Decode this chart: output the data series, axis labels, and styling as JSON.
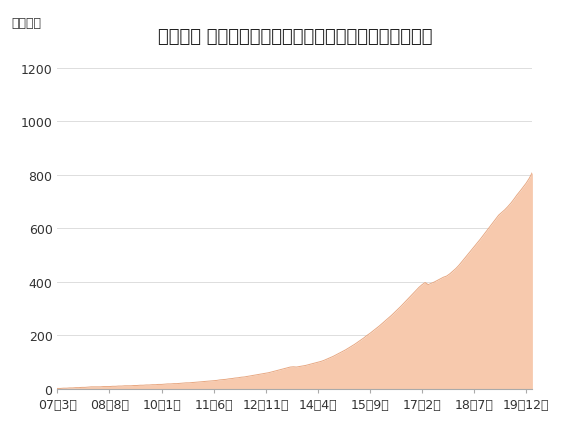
{
  "title": "「セゾン 資産形成の達人ファンド」の純資産残高の推移",
  "ylabel": "（億円）",
  "fill_color": "#F7C9AD",
  "line_color": "#E8A882",
  "background_color": "#ffffff",
  "ylim": [
    0,
    1260
  ],
  "yticks": [
    0,
    200,
    400,
    600,
    800,
    1000,
    1200
  ],
  "xtick_labels": [
    "07年3月",
    "08年8月",
    "10年1月",
    "11年6月",
    "12年11月",
    "14年4月",
    "15年9月",
    "17年2月",
    "18年7月",
    "19年12月"
  ],
  "title_fontsize": 13,
  "axis_fontsize": 9,
  "tick_fontsize": 9,
  "data_x": [
    0,
    1,
    2,
    3,
    4,
    5,
    6,
    7,
    8,
    9,
    10,
    11,
    12,
    13,
    14,
    15,
    16,
    17,
    18,
    19,
    20,
    21,
    22,
    23,
    24,
    25,
    26,
    27,
    28,
    29,
    30,
    31,
    32,
    33,
    34,
    35,
    36,
    37,
    38,
    39,
    40,
    41,
    42,
    43,
    44,
    45,
    46,
    47,
    48,
    49,
    50,
    51,
    52,
    53,
    54,
    55,
    56,
    57,
    58,
    59,
    60,
    61,
    62,
    63,
    64,
    65,
    66,
    67,
    68,
    69,
    70,
    71,
    72,
    73,
    74,
    75,
    76,
    77,
    78,
    79,
    80,
    81,
    82,
    83,
    84,
    85,
    86,
    87,
    88,
    89,
    90,
    91,
    92,
    93,
    94,
    95,
    96,
    97,
    98,
    99,
    100,
    101,
    102,
    103,
    104,
    105,
    106,
    107,
    108,
    109,
    110,
    111,
    112,
    113,
    114,
    115,
    116,
    117,
    118,
    119,
    120,
    121,
    122,
    123,
    124,
    125,
    126,
    127,
    128,
    129,
    130,
    131,
    132,
    133,
    134,
    135,
    136,
    137,
    138,
    139,
    140,
    141,
    142,
    143,
    144,
    145,
    146,
    147,
    148,
    149,
    150,
    151,
    152,
    153,
    154,
    155
  ],
  "data_y": [
    2,
    2,
    3,
    3,
    4,
    4,
    5,
    5,
    6,
    6,
    7,
    8,
    8,
    8,
    8,
    9,
    9,
    9,
    10,
    10,
    11,
    11,
    12,
    12,
    12,
    13,
    13,
    14,
    14,
    15,
    15,
    16,
    16,
    17,
    17,
    18,
    19,
    19,
    20,
    20,
    21,
    22,
    23,
    23,
    24,
    25,
    26,
    27,
    28,
    29,
    30,
    31,
    32,
    34,
    35,
    36,
    38,
    39,
    41,
    42,
    44,
    45,
    47,
    49,
    51,
    53,
    55,
    57,
    59,
    61,
    64,
    67,
    70,
    73,
    76,
    79,
    82,
    83,
    82,
    84,
    86,
    88,
    91,
    94,
    97,
    100,
    103,
    107,
    112,
    117,
    122,
    128,
    134,
    140,
    146,
    153,
    160,
    167,
    175,
    183,
    191,
    200,
    208,
    217,
    226,
    235,
    245,
    255,
    265,
    275,
    286,
    297,
    308,
    320,
    332,
    344,
    356,
    368,
    380,
    390,
    398,
    390,
    395,
    400,
    406,
    412,
    418,
    422,
    430,
    440,
    450,
    462,
    476,
    490,
    504,
    518,
    532,
    546,
    560,
    575,
    590,
    605,
    620,
    635,
    650,
    660,
    670,
    682,
    695,
    710,
    726,
    740,
    755,
    770,
    788,
    810
  ]
}
